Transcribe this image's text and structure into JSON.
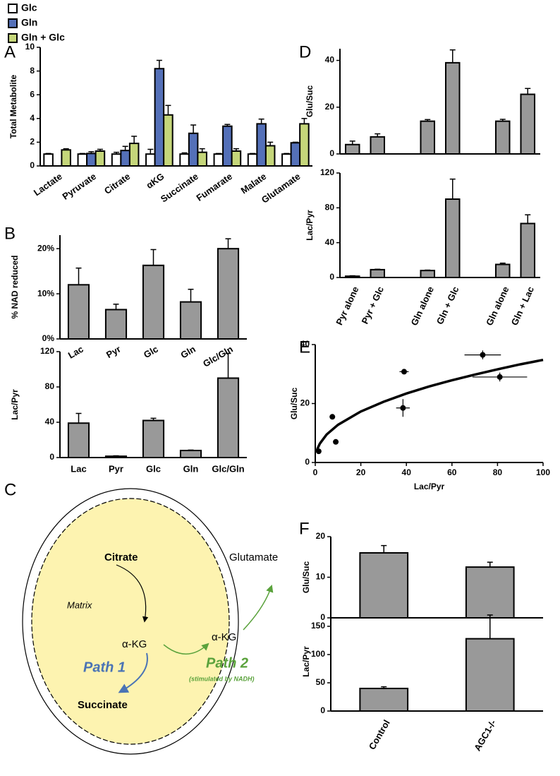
{
  "chart_data": [
    {
      "type": "bar",
      "panel": "A",
      "ylabel": "Total Metabolite",
      "categories": [
        "Lactate",
        "Pyruvate",
        "Citrate",
        "αKG",
        "Succinate",
        "Fumarate",
        "Malate",
        "Glutamate"
      ],
      "series": [
        {
          "name": "Glc",
          "color": "#ffffff",
          "values": [
            1,
            1,
            1,
            1,
            1,
            1,
            1,
            1
          ],
          "errors": [
            0.05,
            0.05,
            0.15,
            0.4,
            0.1,
            0.05,
            0.05,
            0.05
          ]
        },
        {
          "name": "Gln",
          "color": "#5470b8",
          "values": [
            null,
            1.05,
            1.3,
            8.2,
            2.75,
            3.35,
            3.55,
            1.95
          ],
          "errors": [
            null,
            0.15,
            0.35,
            0.7,
            0.7,
            0.15,
            0.4,
            0.05
          ]
        },
        {
          "name": "Gln + Glc",
          "color": "#c5d67a",
          "values": [
            1.35,
            1.25,
            1.9,
            4.3,
            1.15,
            1.25,
            1.7,
            3.55
          ],
          "errors": [
            0.1,
            0.15,
            0.6,
            0.8,
            0.3,
            0.2,
            0.3,
            0.45
          ]
        }
      ],
      "ylim": [
        0,
        10
      ],
      "yticks": [
        0,
        2,
        4,
        6,
        8,
        10
      ]
    },
    {
      "type": "bar",
      "panel": "B",
      "ylabel": "% NAD reduced",
      "categories": [
        "Lac",
        "Pyr",
        "Glc",
        "Gln",
        "Glc/Gln"
      ],
      "values": [
        12,
        6.5,
        16.3,
        8.2,
        20
      ],
      "errors": [
        3.7,
        1.2,
        3.5,
        2.8,
        2.2
      ],
      "color": "#999999",
      "ylim": [
        0,
        23
      ],
      "yticks": [
        {
          "value": 0,
          "label": "0%"
        },
        {
          "value": 10,
          "label": "10%"
        },
        {
          "value": 20,
          "label": "20%"
        }
      ]
    },
    {
      "type": "bar",
      "ylabel": "Lac/Pyr",
      "categories": [
        "Lac",
        "Pyr",
        "Glc",
        "Gln",
        "Glc/Gln"
      ],
      "values": [
        39,
        1.5,
        42,
        8,
        90
      ],
      "errors": [
        11,
        0.5,
        2.5,
        0.5,
        28
      ],
      "color": "#999999",
      "ylim": [
        0,
        120
      ],
      "yticks": [
        0,
        40,
        80,
        120
      ]
    },
    {
      "type": "bar",
      "panel": "D",
      "ylabel": "Glu/Suc",
      "values": [
        4,
        7.3,
        null,
        14,
        39,
        null,
        14,
        25.5
      ],
      "errors": [
        1.5,
        1.3,
        null,
        0.7,
        5.5,
        null,
        0.8,
        2.5
      ],
      "color": "#999999",
      "ylim": [
        0,
        45
      ],
      "yticks": [
        0,
        20,
        40
      ]
    },
    {
      "type": "bar",
      "ylabel": "Lac/Pyr",
      "categories": [
        "Pyr alone",
        "Pyr + Glc",
        null,
        "Gln alone",
        "Gln + Glc",
        null,
        "Gln alone",
        "Gln + Lac"
      ],
      "values": [
        1.5,
        9,
        null,
        8,
        90,
        null,
        15,
        62
      ],
      "errors": [
        0.5,
        0.5,
        null,
        0.5,
        23,
        null,
        1.5,
        10
      ],
      "color": "#999999",
      "ylim": [
        0,
        120
      ],
      "yticks": [
        0,
        40,
        80,
        120
      ]
    },
    {
      "type": "scatter",
      "panel": "E",
      "xlabel": "Lac/Pyr",
      "ylabel": "Glu/Suc",
      "color": "#000000",
      "x": [
        1.5,
        7.5,
        9,
        38.5,
        39,
        73.5,
        81
      ],
      "values": [
        3.8,
        15.5,
        7,
        18.5,
        30.8,
        36.5,
        29
      ],
      "xerr": [
        null,
        null,
        null,
        3,
        2,
        8,
        12
      ],
      "yerr": [
        null,
        null,
        null,
        3,
        null,
        1.5,
        1.5
      ],
      "fit": {
        "x": [
          0.5,
          1,
          2,
          5,
          10,
          20,
          30,
          40,
          50,
          60,
          70,
          80,
          90,
          100
        ],
        "y": [
          3.5,
          4.7,
          6.4,
          9.5,
          12.8,
          17.3,
          20.6,
          23.4,
          25.8,
          27.9,
          29.8,
          31.6,
          33.3,
          34.8
        ]
      },
      "xlim": [
        0,
        100
      ],
      "xticks": [
        0,
        20,
        40,
        60,
        80,
        100
      ],
      "ylim": [
        0,
        40
      ],
      "yticks": [
        0,
        20,
        40
      ]
    },
    {
      "type": "bar",
      "panel": "F",
      "ylabel": "Glu/Suc",
      "values": [
        16,
        12.5
      ],
      "errors": [
        1.8,
        1.2
      ],
      "color": "#999999",
      "ylim": [
        0,
        20
      ],
      "yticks": [
        0,
        10,
        20
      ]
    },
    {
      "type": "bar",
      "ylabel": "Lac/Pyr",
      "categories": [
        "Control",
        "AGC1-/-"
      ],
      "values": [
        40,
        128
      ],
      "errors": [
        3,
        42
      ],
      "color": "#999999",
      "ylim": [
        0,
        175
      ],
      "yticks": [
        0,
        50,
        100,
        150
      ]
    }
  ],
  "diagram": {
    "panel": "C",
    "citrate": "Citrate",
    "matrix": "Matrix",
    "akg_in": "α-KG",
    "path1": "Path 1",
    "succinate": "Succinate",
    "akg_out": "α-KG",
    "glutamate": "Glutamate",
    "path2": "Path 2",
    "path2_note": "(stimulated by NADH)"
  }
}
